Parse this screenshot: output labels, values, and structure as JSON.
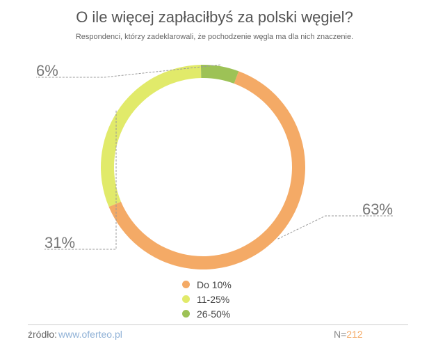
{
  "chart_data": {
    "type": "pie",
    "title": "O ile więcej zapłaciłbyś za polski węgiel?",
    "subtitle": "Respondenci, którzy zadeklarowali, że pochodzenie węgla ma dla nich znaczenie.",
    "categories": [
      "Do 10%",
      "11-25%",
      "26-50%"
    ],
    "values": [
      63,
      31,
      6
    ],
    "value_labels": [
      "63%",
      "31%",
      "6%"
    ],
    "colors": [
      "#f4aa66",
      "#e1ea6a",
      "#9dc256"
    ],
    "donut": true,
    "legend_position": "bottom-center"
  },
  "footer": {
    "source_label": "źródło:",
    "source_url": "www.oferteo.pl",
    "n_label": "N=",
    "n_value": "212"
  }
}
